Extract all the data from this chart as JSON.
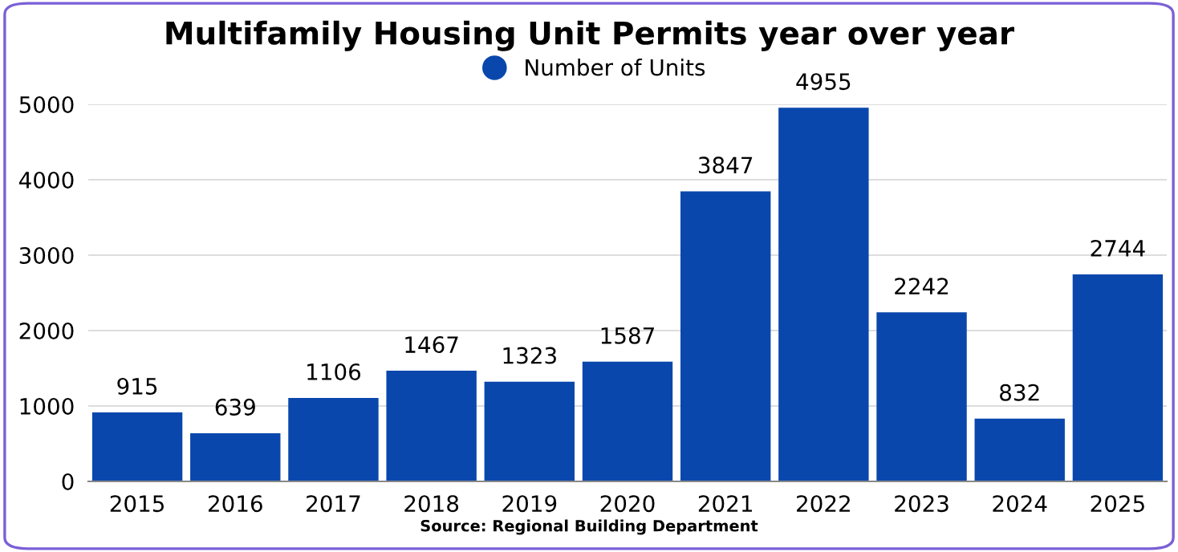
{
  "chart_data": {
    "type": "bar",
    "title": "Multifamily Housing Unit Permits year over year",
    "categories": [
      "2015",
      "2016",
      "2017",
      "2018",
      "2019",
      "2020",
      "2021",
      "2022",
      "2023",
      "2024",
      "2025"
    ],
    "series": [
      {
        "name": "Number of Units",
        "color": "#0a47ad",
        "values": [
          915,
          639,
          1106,
          1467,
          1323,
          1587,
          3847,
          4955,
          2242,
          832,
          2744
        ]
      }
    ],
    "ylim": [
      0,
      5000
    ],
    "yticks": [
      0,
      1000,
      2000,
      3000,
      4000,
      5000
    ],
    "grid": "y",
    "legend": "top",
    "data_labels": true,
    "annotations": [
      "Source: Regional Building Department"
    ]
  }
}
